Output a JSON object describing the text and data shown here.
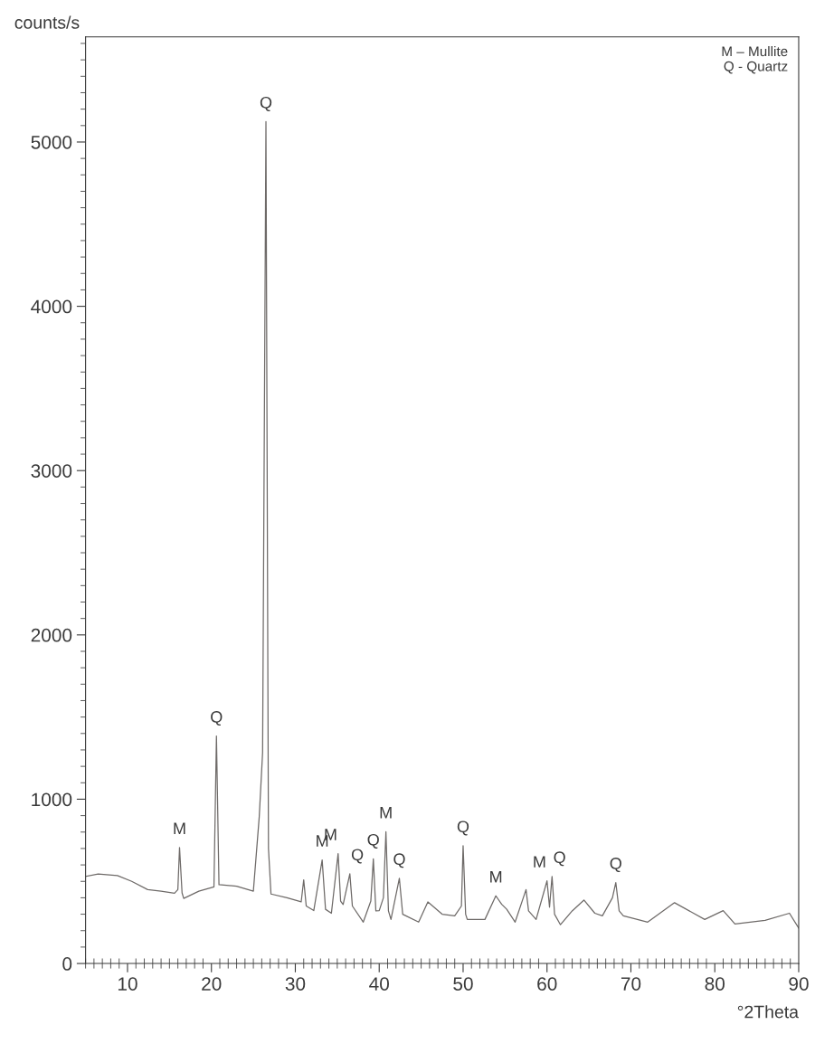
{
  "chart_data": {
    "type": "line",
    "xlabel": "°2Theta",
    "ylabel": "counts/s",
    "xlim": [
      5,
      90
    ],
    "ylim": [
      0,
      5640
    ],
    "xticks": [
      {
        "value": 5,
        "label": null
      },
      {
        "value": 6,
        "label": null
      },
      {
        "value": 7,
        "label": null
      },
      {
        "value": 8,
        "label": null
      },
      {
        "value": 9,
        "label": null
      },
      10,
      {
        "value": 11,
        "label": null
      },
      {
        "value": 12,
        "label": null
      },
      {
        "value": 13,
        "label": null
      },
      {
        "value": 14,
        "label": null
      },
      {
        "value": 15,
        "label": null
      },
      {
        "value": 16,
        "label": null
      },
      {
        "value": 17,
        "label": null
      },
      {
        "value": 18,
        "label": null
      },
      {
        "value": 19,
        "label": null
      },
      20,
      {
        "value": 21,
        "label": null
      },
      {
        "value": 22,
        "label": null
      },
      {
        "value": 23,
        "label": null
      },
      {
        "value": 24,
        "label": null
      },
      {
        "value": 25,
        "label": null
      },
      {
        "value": 26,
        "label": null
      },
      {
        "value": 27,
        "label": null
      },
      {
        "value": 28,
        "label": null
      },
      {
        "value": 29,
        "label": null
      },
      30,
      {
        "value": 31,
        "label": null
      },
      {
        "value": 32,
        "label": null
      },
      {
        "value": 33,
        "label": null
      },
      {
        "value": 34,
        "label": null
      },
      {
        "value": 35,
        "label": null
      },
      {
        "value": 36,
        "label": null
      },
      {
        "value": 37,
        "label": null
      },
      {
        "value": 38,
        "label": null
      },
      {
        "value": 39,
        "label": null
      },
      40,
      {
        "value": 41,
        "label": null
      },
      {
        "value": 42,
        "label": null
      },
      {
        "value": 43,
        "label": null
      },
      {
        "value": 44,
        "label": null
      },
      {
        "value": 45,
        "label": null
      },
      {
        "value": 46,
        "label": null
      },
      {
        "value": 47,
        "label": null
      },
      {
        "value": 48,
        "label": null
      },
      {
        "value": 49,
        "label": null
      },
      50,
      {
        "value": 51,
        "label": null
      },
      {
        "value": 52,
        "label": null
      },
      {
        "value": 53,
        "label": null
      },
      {
        "value": 54,
        "label": null
      },
      {
        "value": 55,
        "label": null
      },
      {
        "value": 56,
        "label": null
      },
      {
        "value": 57,
        "label": null
      },
      {
        "value": 58,
        "label": null
      },
      {
        "value": 59,
        "label": null
      },
      60,
      {
        "value": 61,
        "label": null
      },
      {
        "value": 62,
        "label": null
      },
      {
        "value": 63,
        "label": null
      },
      {
        "value": 64,
        "label": null
      },
      {
        "value": 65,
        "label": null
      },
      {
        "value": 66,
        "label": null
      },
      {
        "value": 67,
        "label": null
      },
      {
        "value": 68,
        "label": null
      },
      {
        "value": 69,
        "label": null
      },
      70,
      {
        "value": 71,
        "label": null
      },
      {
        "value": 72,
        "label": null
      },
      {
        "value": 73,
        "label": null
      },
      {
        "value": 74,
        "label": null
      },
      {
        "value": 75,
        "label": null
      },
      {
        "value": 76,
        "label": null
      },
      {
        "value": 77,
        "label": null
      },
      {
        "value": 78,
        "label": null
      },
      {
        "value": 79,
        "label": null
      },
      80,
      {
        "value": 81,
        "label": null
      },
      {
        "value": 82,
        "label": null
      },
      {
        "value": 83,
        "label": null
      },
      {
        "value": 84,
        "label": null
      },
      {
        "value": 85,
        "label": null
      },
      {
        "value": 86,
        "label": null
      },
      {
        "value": 87,
        "label": null
      },
      {
        "value": 88,
        "label": null
      },
      {
        "value": 89,
        "label": null
      },
      90
    ],
    "yticks": [
      0,
      {
        "value": 100,
        "label": null
      },
      {
        "value": 200,
        "label": null
      },
      {
        "value": 300,
        "label": null
      },
      {
        "value": 400,
        "label": null
      },
      {
        "value": 500,
        "label": null
      },
      {
        "value": 600,
        "label": null
      },
      {
        "value": 700,
        "label": null
      },
      {
        "value": 800,
        "label": null
      },
      {
        "value": 900,
        "label": null
      },
      1000,
      {
        "value": 1100,
        "label": null
      },
      {
        "value": 1200,
        "label": null
      },
      {
        "value": 1300,
        "label": null
      },
      {
        "value": 1400,
        "label": null
      },
      {
        "value": 1500,
        "label": null
      },
      {
        "value": 1600,
        "label": null
      },
      {
        "value": 1700,
        "label": null
      },
      {
        "value": 1800,
        "label": null
      },
      {
        "value": 1900,
        "label": null
      },
      2000,
      {
        "value": 2100,
        "label": null
      },
      {
        "value": 2200,
        "label": null
      },
      {
        "value": 2300,
        "label": null
      },
      {
        "value": 2400,
        "label": null
      },
      {
        "value": 2500,
        "label": null
      },
      {
        "value": 2600,
        "label": null
      },
      {
        "value": 2700,
        "label": null
      },
      {
        "value": 2800,
        "label": null
      },
      {
        "value": 2900,
        "label": null
      },
      3000,
      {
        "value": 3100,
        "label": null
      },
      {
        "value": 3200,
        "label": null
      },
      {
        "value": 3300,
        "label": null
      },
      {
        "value": 3400,
        "label": null
      },
      {
        "value": 3500,
        "label": null
      },
      {
        "value": 3600,
        "label": null
      },
      {
        "value": 3700,
        "label": null
      },
      {
        "value": 3800,
        "label": null
      },
      {
        "value": 3900,
        "label": null
      },
      4000,
      {
        "value": 4100,
        "label": null
      },
      {
        "value": 4200,
        "label": null
      },
      {
        "value": 4300,
        "label": null
      },
      {
        "value": 4400,
        "label": null
      },
      {
        "value": 4500,
        "label": null
      },
      {
        "value": 4600,
        "label": null
      },
      {
        "value": 4700,
        "label": null
      },
      {
        "value": 4800,
        "label": null
      },
      {
        "value": 4900,
        "label": null
      },
      5000,
      {
        "value": 5100,
        "label": null
      },
      {
        "value": 5200,
        "label": null
      },
      {
        "value": 5300,
        "label": null
      },
      {
        "value": 5400,
        "label": null
      },
      {
        "value": 5500,
        "label": null
      },
      {
        "value": 5600,
        "label": null
      }
    ],
    "grid": false,
    "marker": "none",
    "line_style": "solid",
    "series": [
      {
        "color": "#6e6a68",
        "x": [
          5.0,
          6.5,
          8.8,
          10.5,
          12.4,
          14.0,
          15.6,
          16.0,
          16.2,
          16.5,
          16.7,
          18.5,
          20.3,
          20.6,
          20.9,
          23.0,
          25.0,
          25.7,
          26.1,
          26.5,
          26.8,
          27.1,
          29.0,
          30.7,
          31.0,
          31.3,
          32.2,
          33.2,
          33.6,
          34.3,
          35.1,
          35.4,
          35.7,
          36.5,
          36.8,
          38.1,
          39.0,
          39.3,
          39.6,
          40.0,
          40.5,
          40.8,
          41.1,
          41.4,
          42.4,
          42.8,
          44.7,
          45.8,
          47.5,
          49.0,
          49.8,
          50.0,
          50.3,
          50.5,
          52.6,
          53.9,
          54.6,
          55.2,
          56.2,
          57.5,
          57.8,
          58.7,
          60.0,
          60.3,
          60.6,
          60.9,
          61.6,
          63.0,
          64.4,
          65.7,
          66.6,
          67.8,
          68.2,
          68.6,
          69.1,
          72.0,
          75.2,
          78.8,
          81.0,
          82.4,
          86.0,
          88.9,
          90.0
        ],
        "values": [
          530,
          545,
          535,
          500,
          450,
          440,
          428,
          450,
          706,
          430,
          396,
          440,
          466,
          1385,
          480,
          470,
          440,
          893,
          1283,
          5124,
          700,
          423,
          400,
          375,
          509,
          350,
          322,
          630,
          330,
          306,
          669,
          380,
          359,
          546,
          350,
          252,
          380,
          637,
          320,
          322,
          400,
          802,
          320,
          268,
          519,
          300,
          252,
          375,
          300,
          290,
          350,
          717,
          300,
          268,
          268,
          412,
          360,
          330,
          252,
          450,
          320,
          268,
          503,
          343,
          530,
          300,
          236,
          320,
          386,
          306,
          290,
          400,
          493,
          320,
          290,
          252,
          370,
          268,
          322,
          241,
          263,
          306,
          215
        ]
      }
    ],
    "annotations": [
      "M – Mullite\nQ - Quartz",
      {
        "text": "M",
        "x": 16.2,
        "y": 706
      },
      {
        "text": "Q",
        "x": 20.6,
        "y": 1385
      },
      {
        "text": "Q",
        "x": 26.5,
        "y": 5124
      },
      {
        "text": "M",
        "x": 33.2,
        "y": 630
      },
      {
        "text": "M",
        "x": 35.1,
        "y": 669
      },
      {
        "text": "Q",
        "x": 36.5,
        "y": 546
      },
      {
        "text": "Q",
        "x": 39.3,
        "y": 637
      },
      {
        "text": "M",
        "x": 40.8,
        "y": 802
      },
      {
        "text": "Q",
        "x": 42.4,
        "y": 519
      },
      {
        "text": "Q",
        "x": 50.0,
        "y": 717
      },
      {
        "text": "M",
        "x": 53.9,
        "y": 412
      },
      {
        "text": "M",
        "x": 60.0,
        "y": 503
      },
      {
        "text": "Q",
        "x": 60.6,
        "y": 530
      },
      {
        "text": "Q",
        "x": 68.2,
        "y": 493
      }
    ]
  }
}
